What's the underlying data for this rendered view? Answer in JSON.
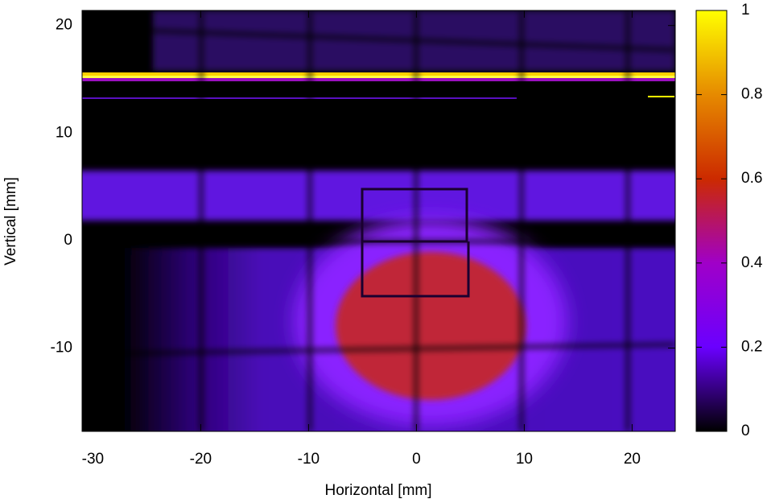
{
  "chart_data": {
    "type": "heatmap",
    "x_label": "Horizontal [mm]",
    "y_label": "Vertical [mm]",
    "xlim": [
      -31,
      24
    ],
    "ylim": [
      -17.75,
      21.4
    ],
    "xticks": [
      -30,
      -20,
      -10,
      0,
      10,
      20
    ],
    "yticks": [
      -10,
      0,
      10,
      20
    ],
    "colorbar": {
      "lim": [
        0,
        1
      ],
      "ticks": [
        0,
        0.2,
        0.4,
        0.6,
        0.8,
        1
      ],
      "colors": [
        "#000000",
        "#6a00ff",
        "#a000c8",
        "#cc2a00",
        "#e68a00",
        "#ffff00"
      ]
    }
  }
}
